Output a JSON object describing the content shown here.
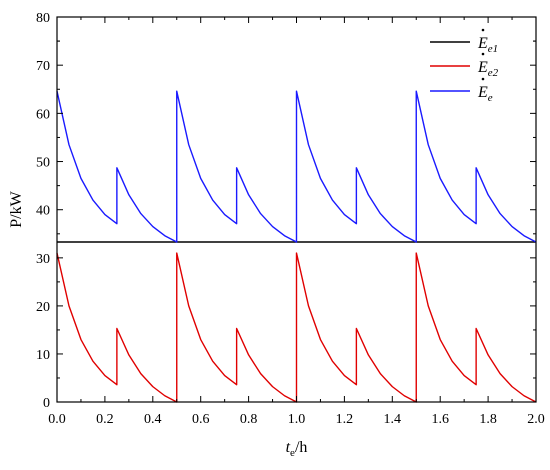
{
  "chart_data": {
    "type": "line",
    "title": "",
    "xlabel": {
      "main": "t",
      "sub": "e",
      "unit": "/h"
    },
    "ylabel": "P/kW",
    "x_ticks": [
      "0.0",
      "0.2",
      "0.4",
      "0.6",
      "0.8",
      "1.0",
      "1.2",
      "1.4",
      "1.6",
      "1.8",
      "2.0"
    ],
    "xlim": [
      0,
      2.0
    ],
    "top_panel": {
      "ylim": [
        33.3,
        80
      ],
      "y_ticks": [
        "40",
        "50",
        "60",
        "70",
        "80"
      ]
    },
    "bottom_panel": {
      "ylim": [
        0,
        33.3
      ],
      "y_ticks": [
        "0",
        "10",
        "20",
        "30"
      ]
    },
    "legend": {
      "placement": "top-right",
      "entries": [
        {
          "symbol": "E",
          "sub": "e1",
          "color": "#000000"
        },
        {
          "symbol": "E",
          "sub": "e2",
          "color": "#e00000"
        },
        {
          "symbol": "E",
          "sub": "e",
          "color": "#1a1aff"
        }
      ]
    },
    "series": [
      {
        "color": "#000000",
        "panel": "top",
        "x": [
          0,
          2.0
        ],
        "y": [
          33.3,
          33.3
        ]
      },
      {
        "color": "#e00000",
        "panel": "bottom",
        "x": [
          0,
          0.05,
          0.1,
          0.15,
          0.2,
          0.25,
          0.25,
          0.3,
          0.35,
          0.4,
          0.45,
          0.5,
          0.5,
          0.55,
          0.6,
          0.65,
          0.7,
          0.75,
          0.75,
          0.8,
          0.85,
          0.9,
          0.95,
          1.0,
          1.0,
          1.05,
          1.1,
          1.15,
          1.2,
          1.25,
          1.25,
          1.3,
          1.35,
          1.4,
          1.45,
          1.5,
          1.5,
          1.55,
          1.6,
          1.65,
          1.7,
          1.75,
          1.75,
          1.8,
          1.85,
          1.9,
          1.95,
          2.0
        ],
        "y": [
          31.0,
          20.0,
          13.0,
          8.5,
          5.5,
          3.6,
          15.3,
          9.8,
          5.9,
          3.2,
          1.3,
          0.0,
          31.0,
          20.0,
          13.0,
          8.5,
          5.5,
          3.6,
          15.3,
          9.8,
          5.9,
          3.2,
          1.3,
          0.0,
          31.0,
          20.0,
          13.0,
          8.5,
          5.5,
          3.6,
          15.3,
          9.8,
          5.9,
          3.2,
          1.3,
          0.0,
          31.0,
          20.0,
          13.0,
          8.5,
          5.5,
          3.6,
          15.3,
          9.8,
          5.9,
          3.2,
          1.3,
          0.0
        ]
      },
      {
        "color": "#1a1aff",
        "panel": "top",
        "x": [
          0,
          0.05,
          0.1,
          0.15,
          0.2,
          0.25,
          0.25,
          0.3,
          0.35,
          0.4,
          0.45,
          0.5,
          0.5,
          0.55,
          0.6,
          0.65,
          0.7,
          0.75,
          0.75,
          0.8,
          0.85,
          0.9,
          0.95,
          1.0,
          1.0,
          1.05,
          1.1,
          1.15,
          1.2,
          1.25,
          1.25,
          1.3,
          1.35,
          1.4,
          1.45,
          1.5,
          1.5,
          1.55,
          1.6,
          1.65,
          1.7,
          1.75,
          1.75,
          1.8,
          1.85,
          1.9,
          1.95,
          2.0
        ],
        "y": [
          64.6,
          53.5,
          46.5,
          42.0,
          39.0,
          37.1,
          48.7,
          43.1,
          39.2,
          36.5,
          34.6,
          33.3,
          64.6,
          53.5,
          46.5,
          42.0,
          39.0,
          37.1,
          48.7,
          43.1,
          39.2,
          36.5,
          34.6,
          33.3,
          64.6,
          53.5,
          46.5,
          42.0,
          39.0,
          37.1,
          48.7,
          43.1,
          39.2,
          36.5,
          34.6,
          33.3,
          64.6,
          53.5,
          46.5,
          42.0,
          39.0,
          37.1,
          48.7,
          43.1,
          39.2,
          36.5,
          34.6,
          33.3
        ]
      }
    ]
  }
}
